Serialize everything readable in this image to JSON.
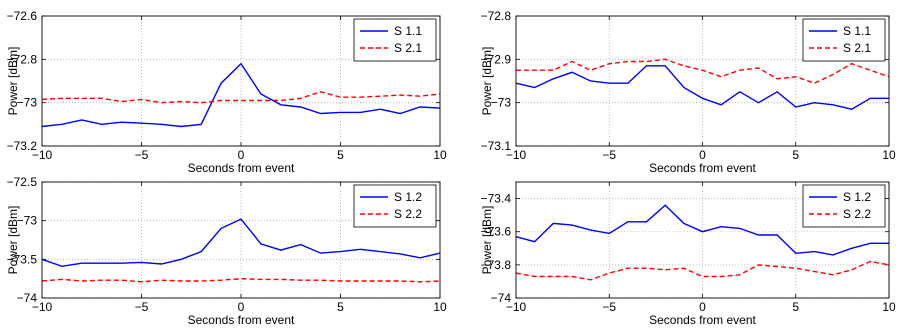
{
  "colors": {
    "series1": "#0000ff",
    "series2": "#ff0000",
    "grid": "#b0b0b0"
  },
  "chart_data": [
    {
      "type": "line",
      "xlabel": "Seconds from event",
      "ylabel": "Power [dBm]",
      "xlim": [
        -10,
        10
      ],
      "ylim": [
        -73.2,
        -72.6
      ],
      "xticks": [
        -10,
        -5,
        0,
        5,
        10
      ],
      "yticks": [
        -73.2,
        -73,
        -72.8,
        -72.6
      ],
      "xtick_labels": [
        "−10",
        "−5",
        "0",
        "5",
        "10"
      ],
      "ytick_labels": [
        "−73.2",
        "−73",
        "−72.8",
        "−72.6"
      ],
      "grid": true,
      "legend_position": "top-right",
      "x": [
        -10,
        -9,
        -8,
        -7,
        -6,
        -5,
        -4,
        -3,
        -2,
        -1,
        0,
        1,
        2,
        3,
        4,
        5,
        6,
        7,
        8,
        9,
        10
      ],
      "series": [
        {
          "name": "S 1.1",
          "style": "solid",
          "values": [
            -73.11,
            -73.1,
            -73.08,
            -73.1,
            -73.09,
            -73.095,
            -73.1,
            -73.11,
            -73.1,
            -72.91,
            -72.82,
            -72.96,
            -73.01,
            -73.02,
            -73.05,
            -73.045,
            -73.045,
            -73.03,
            -73.05,
            -73.02,
            -73.025
          ]
        },
        {
          "name": "S 2.1",
          "style": "dashed",
          "values": [
            -72.985,
            -72.98,
            -72.98,
            -72.98,
            -72.995,
            -72.985,
            -73.0,
            -72.995,
            -73.0,
            -72.99,
            -72.99,
            -72.99,
            -72.99,
            -72.98,
            -72.95,
            -72.975,
            -72.975,
            -72.97,
            -72.965,
            -72.97,
            -72.96
          ]
        }
      ]
    },
    {
      "type": "line",
      "xlabel": "Seconds from event",
      "ylabel": "Power [dBm]",
      "xlim": [
        -10,
        10
      ],
      "ylim": [
        -73.1,
        -72.8
      ],
      "xticks": [
        -10,
        -5,
        0,
        5,
        10
      ],
      "yticks": [
        -73.1,
        -73,
        -72.9,
        -72.8
      ],
      "xtick_labels": [
        "−10",
        "−5",
        "0",
        "5",
        "10"
      ],
      "ytick_labels": [
        "−73.1",
        "−73",
        "−72.9",
        "−72.8"
      ],
      "grid": true,
      "legend_position": "top-right",
      "x": [
        -10,
        -9,
        -8,
        -7,
        -6,
        -5,
        -4,
        -3,
        -2,
        -1,
        0,
        1,
        2,
        3,
        4,
        5,
        6,
        7,
        8,
        9,
        10
      ],
      "series": [
        {
          "name": "S 1.1",
          "style": "solid",
          "values": [
            -72.955,
            -72.965,
            -72.945,
            -72.93,
            -72.95,
            -72.955,
            -72.955,
            -72.915,
            -72.915,
            -72.965,
            -72.99,
            -73.005,
            -72.975,
            -73.0,
            -72.975,
            -73.01,
            -73.0,
            -73.005,
            -73.015,
            -72.99,
            -72.99
          ]
        },
        {
          "name": "S 2.1",
          "style": "dashed",
          "values": [
            -72.925,
            -72.925,
            -72.925,
            -72.905,
            -72.925,
            -72.91,
            -72.905,
            -72.905,
            -72.9,
            -72.915,
            -72.925,
            -72.94,
            -72.925,
            -72.92,
            -72.945,
            -72.94,
            -72.955,
            -72.935,
            -72.91,
            -72.925,
            -72.94
          ]
        }
      ]
    },
    {
      "type": "line",
      "xlabel": "Seconds from event",
      "ylabel": "Power [dBm]",
      "xlim": [
        -10,
        10
      ],
      "ylim": [
        -74,
        -72.5
      ],
      "xticks": [
        -10,
        -5,
        0,
        5,
        10
      ],
      "yticks": [
        -74,
        -73.5,
        -73,
        -72.5
      ],
      "xtick_labels": [
        "−10",
        "−5",
        "0",
        "5",
        "10"
      ],
      "ytick_labels": [
        "−74",
        "−73.5",
        "−73",
        "−72.5"
      ],
      "grid": true,
      "legend_position": "top-right",
      "x": [
        -10,
        -9,
        -8,
        -7,
        -6,
        -5,
        -4,
        -3,
        -2,
        -1,
        0,
        1,
        2,
        3,
        4,
        5,
        6,
        7,
        8,
        9,
        10
      ],
      "series": [
        {
          "name": "S 1.2",
          "style": "solid",
          "values": [
            -73.5,
            -73.59,
            -73.55,
            -73.55,
            -73.55,
            -73.54,
            -73.56,
            -73.5,
            -73.4,
            -73.1,
            -72.98,
            -73.3,
            -73.38,
            -73.31,
            -73.42,
            -73.4,
            -73.37,
            -73.4,
            -73.43,
            -73.48,
            -73.42
          ]
        },
        {
          "name": "S 2.2",
          "style": "dashed",
          "values": [
            -73.78,
            -73.76,
            -73.78,
            -73.77,
            -73.77,
            -73.79,
            -73.77,
            -73.78,
            -73.78,
            -73.77,
            -73.75,
            -73.76,
            -73.76,
            -73.77,
            -73.77,
            -73.78,
            -73.78,
            -73.78,
            -73.78,
            -73.79,
            -73.78
          ]
        }
      ]
    },
    {
      "type": "line",
      "xlabel": "Seconds from event",
      "ylabel": "Power [dBm]",
      "xlim": [
        -10,
        10
      ],
      "ylim": [
        -74,
        -73.3
      ],
      "xticks": [
        -10,
        -5,
        0,
        5,
        10
      ],
      "yticks": [
        -74,
        -73.8,
        -73.6,
        -73.4
      ],
      "xtick_labels": [
        "−10",
        "−5",
        "0",
        "5",
        "10"
      ],
      "ytick_labels": [
        "−74",
        "−73.8",
        "−73.6",
        "−73.4"
      ],
      "grid": true,
      "legend_position": "top-right",
      "x": [
        -10,
        -9,
        -8,
        -7,
        -6,
        -5,
        -4,
        -3,
        -2,
        -1,
        0,
        1,
        2,
        3,
        4,
        5,
        6,
        7,
        8,
        9,
        10
      ],
      "series": [
        {
          "name": "S 1.2",
          "style": "solid",
          "values": [
            -73.63,
            -73.66,
            -73.55,
            -73.56,
            -73.59,
            -73.61,
            -73.54,
            -73.54,
            -73.44,
            -73.55,
            -73.6,
            -73.57,
            -73.58,
            -73.62,
            -73.62,
            -73.73,
            -73.72,
            -73.74,
            -73.7,
            -73.67,
            -73.67
          ]
        },
        {
          "name": "S 2.2",
          "style": "dashed",
          "values": [
            -73.85,
            -73.87,
            -73.87,
            -73.87,
            -73.89,
            -73.85,
            -73.82,
            -73.82,
            -73.83,
            -73.82,
            -73.87,
            -73.87,
            -73.86,
            -73.8,
            -73.81,
            -73.82,
            -73.84,
            -73.86,
            -73.83,
            -73.78,
            -73.8
          ]
        }
      ]
    }
  ]
}
